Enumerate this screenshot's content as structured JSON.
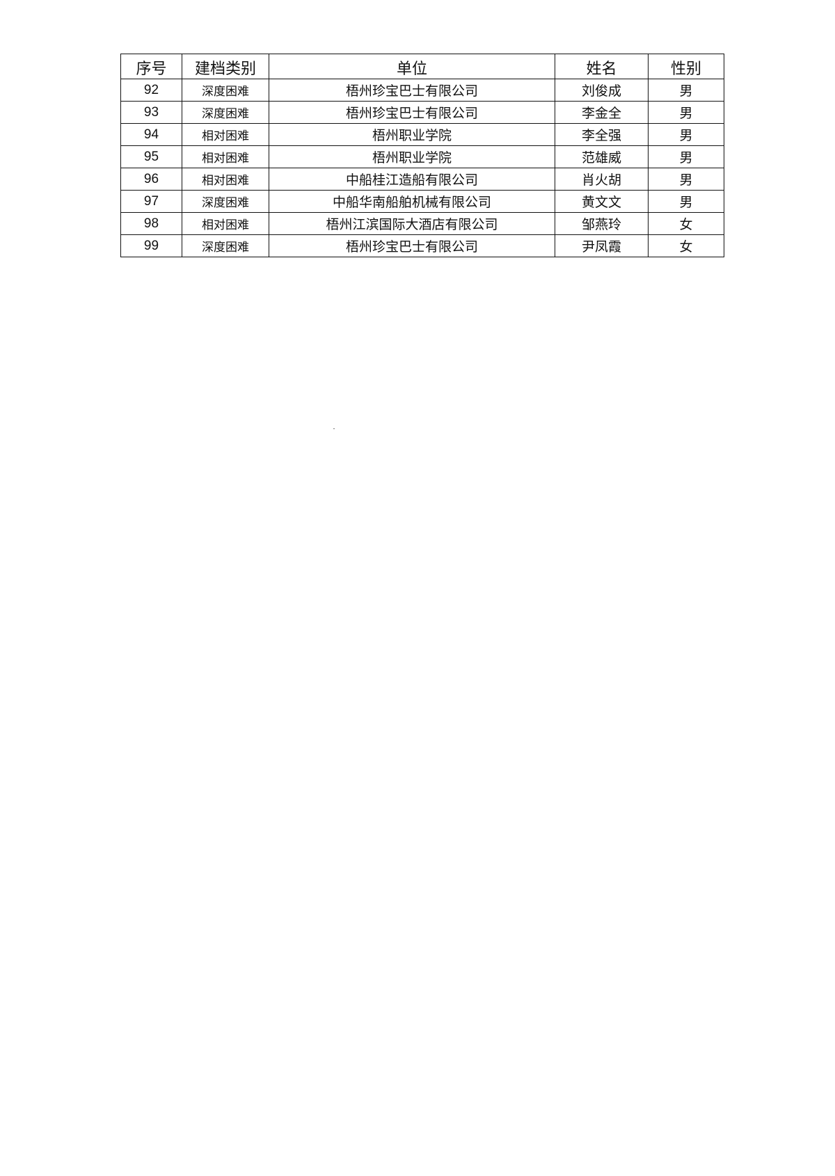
{
  "table": {
    "headers": [
      "序号",
      "建档类别",
      "单位",
      "姓名",
      "性别"
    ],
    "rows": [
      [
        "92",
        "深度困难",
        "梧州珍宝巴士有限公司",
        "刘俊成",
        "男"
      ],
      [
        "93",
        "深度困难",
        "梧州珍宝巴士有限公司",
        "李金全",
        "男"
      ],
      [
        "94",
        "相对困难",
        "梧州职业学院",
        "李全强",
        "男"
      ],
      [
        "95",
        "相对困难",
        "梧州职业学院",
        "范雄威",
        "男"
      ],
      [
        "96",
        "相对困难",
        "中船桂江造船有限公司",
        "肖火胡",
        "男"
      ],
      [
        "97",
        "深度困难",
        "中船华南船舶机械有限公司",
        "黄文文",
        "男"
      ],
      [
        "98",
        "相对困难",
        "梧州江滨国际大酒店有限公司",
        "邹燕玲",
        "女"
      ],
      [
        "99",
        "深度困难",
        "梧州珍宝巴士有限公司",
        "尹凤霞",
        "女"
      ]
    ]
  }
}
